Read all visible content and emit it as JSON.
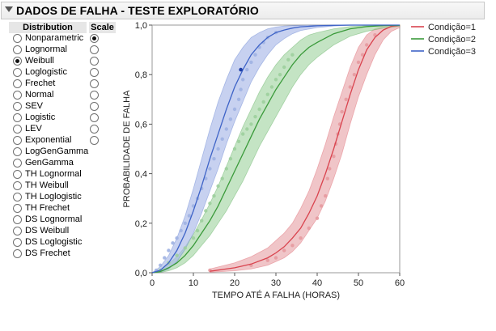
{
  "report": {
    "title": "DADOS DE FALHA - TESTE EXPLORATÓRIO"
  },
  "table": {
    "distribution_header": "Distribution",
    "scale_header": "Scale",
    "distributions": [
      {
        "label": "Nonparametric",
        "selected": false,
        "scale_selected": true,
        "has_scale": true
      },
      {
        "label": "Lognormal",
        "selected": false,
        "scale_selected": false,
        "has_scale": true
      },
      {
        "label": "Weibull",
        "selected": true,
        "scale_selected": false,
        "has_scale": true
      },
      {
        "label": "Loglogistic",
        "selected": false,
        "scale_selected": false,
        "has_scale": true
      },
      {
        "label": "Frechet",
        "selected": false,
        "scale_selected": false,
        "has_scale": true
      },
      {
        "label": "Normal",
        "selected": false,
        "scale_selected": false,
        "has_scale": true
      },
      {
        "label": "SEV",
        "selected": false,
        "scale_selected": false,
        "has_scale": true
      },
      {
        "label": "Logistic",
        "selected": false,
        "scale_selected": false,
        "has_scale": true
      },
      {
        "label": "LEV",
        "selected": false,
        "scale_selected": false,
        "has_scale": true
      },
      {
        "label": "Exponential",
        "selected": false,
        "scale_selected": false,
        "has_scale": true
      },
      {
        "label": "LogGenGamma",
        "selected": false,
        "scale_selected": false,
        "has_scale": false
      },
      {
        "label": "GenGamma",
        "selected": false,
        "scale_selected": false,
        "has_scale": false
      },
      {
        "label": "TH Lognormal",
        "selected": false,
        "scale_selected": false,
        "has_scale": false
      },
      {
        "label": "TH Weibull",
        "selected": false,
        "scale_selected": false,
        "has_scale": false
      },
      {
        "label": "TH Loglogistic",
        "selected": false,
        "scale_selected": false,
        "has_scale": false
      },
      {
        "label": "TH Frechet",
        "selected": false,
        "scale_selected": false,
        "has_scale": false
      },
      {
        "label": "DS Lognormal",
        "selected": false,
        "scale_selected": false,
        "has_scale": false
      },
      {
        "label": "DS Weibull",
        "selected": false,
        "scale_selected": false,
        "has_scale": false
      },
      {
        "label": "DS Loglogistic",
        "selected": false,
        "scale_selected": false,
        "has_scale": false
      },
      {
        "label": "DS Frechet",
        "selected": false,
        "scale_selected": false,
        "has_scale": false
      }
    ]
  },
  "chart_data": {
    "type": "line",
    "xlabel": "TEMPO ATÉ A FALHA (HORAS)",
    "ylabel": "PROBABILIDADE DE FALHA",
    "xlim": [
      0,
      60
    ],
    "ylim": [
      0,
      1
    ],
    "x_ticks": [
      "0",
      "10",
      "20",
      "30",
      "40",
      "50",
      "60"
    ],
    "y_ticks": [
      "0,0",
      "0,2",
      "0,4",
      "0,6",
      "0,8",
      "1,0"
    ],
    "grid": false,
    "legend_position": "right",
    "series": [
      {
        "name": "Condição=1",
        "color": "#d9434e",
        "fill": "#e8a6aa",
        "dots": "#e6999e",
        "x": [
          14,
          20,
          24,
          28,
          30,
          32,
          34,
          36,
          38,
          40,
          42,
          44,
          46,
          48,
          50,
          52,
          54,
          56,
          58,
          60
        ],
        "y": [
          0.006,
          0.02,
          0.035,
          0.06,
          0.08,
          0.105,
          0.14,
          0.18,
          0.24,
          0.31,
          0.4,
          0.5,
          0.61,
          0.72,
          0.82,
          0.9,
          0.95,
          0.98,
          0.995,
          0.999
        ],
        "upper": [
          0.015,
          0.04,
          0.065,
          0.1,
          0.13,
          0.16,
          0.2,
          0.26,
          0.33,
          0.42,
          0.52,
          0.63,
          0.73,
          0.83,
          0.91,
          0.96,
          0.985,
          0.996,
          0.999,
          1.0
        ],
        "lower": [
          0.002,
          0.008,
          0.015,
          0.03,
          0.045,
          0.06,
          0.085,
          0.12,
          0.17,
          0.22,
          0.29,
          0.38,
          0.48,
          0.6,
          0.71,
          0.8,
          0.88,
          0.94,
          0.975,
          0.99
        ],
        "points": [
          [
            14,
            0.01
          ],
          [
            24,
            0.03
          ],
          [
            28,
            0.05
          ],
          [
            30,
            0.06
          ],
          [
            32,
            0.09
          ],
          [
            34,
            0.11
          ],
          [
            36,
            0.14
          ],
          [
            38,
            0.18
          ],
          [
            40,
            0.22
          ],
          [
            41,
            0.27
          ],
          [
            42,
            0.31
          ],
          [
            42.5,
            0.38
          ],
          [
            43,
            0.42
          ],
          [
            44,
            0.47
          ],
          [
            44.5,
            0.52
          ],
          [
            45,
            0.56
          ],
          [
            45.5,
            0.6
          ],
          [
            46,
            0.65
          ],
          [
            47,
            0.7
          ],
          [
            48,
            0.75
          ],
          [
            49,
            0.8
          ],
          [
            50,
            0.85
          ],
          [
            51,
            0.88
          ],
          [
            52,
            0.92
          ],
          [
            54,
            0.96
          ]
        ]
      },
      {
        "name": "Condição=2",
        "color": "#3a9a3a",
        "fill": "#a5d6a5",
        "dots": "#9dcf9d",
        "x": [
          0,
          2,
          4,
          6,
          8,
          10,
          12,
          14,
          16,
          18,
          20,
          22,
          24,
          26,
          28,
          30,
          32,
          34,
          36,
          38,
          40,
          44,
          48,
          52,
          56,
          60
        ],
        "y": [
          0.0,
          0.005,
          0.02,
          0.04,
          0.07,
          0.11,
          0.16,
          0.21,
          0.27,
          0.34,
          0.41,
          0.48,
          0.55,
          0.62,
          0.68,
          0.74,
          0.79,
          0.84,
          0.88,
          0.91,
          0.93,
          0.965,
          0.985,
          0.994,
          0.998,
          0.999
        ],
        "upper": [
          0.0,
          0.012,
          0.035,
          0.065,
          0.105,
          0.155,
          0.215,
          0.28,
          0.35,
          0.43,
          0.51,
          0.59,
          0.66,
          0.73,
          0.79,
          0.84,
          0.88,
          0.91,
          0.94,
          0.96,
          0.97,
          0.985,
          0.994,
          0.998,
          0.999,
          1.0
        ],
        "lower": [
          0.0,
          0.001,
          0.008,
          0.02,
          0.04,
          0.07,
          0.11,
          0.15,
          0.2,
          0.25,
          0.31,
          0.37,
          0.44,
          0.51,
          0.57,
          0.63,
          0.69,
          0.75,
          0.8,
          0.84,
          0.87,
          0.92,
          0.955,
          0.975,
          0.988,
          0.995
        ],
        "points": [
          [
            2,
            0.01
          ],
          [
            4,
            0.04
          ],
          [
            6,
            0.07
          ],
          [
            8,
            0.1
          ],
          [
            10,
            0.14
          ],
          [
            11,
            0.17
          ],
          [
            12,
            0.21
          ],
          [
            13,
            0.25
          ],
          [
            14,
            0.28
          ],
          [
            15,
            0.31
          ],
          [
            16,
            0.35
          ],
          [
            17,
            0.38
          ],
          [
            18,
            0.42
          ],
          [
            19,
            0.46
          ],
          [
            20,
            0.5
          ],
          [
            21,
            0.53
          ],
          [
            22,
            0.56
          ],
          [
            23,
            0.58
          ],
          [
            24,
            0.6
          ],
          [
            25,
            0.63
          ],
          [
            26,
            0.66
          ],
          [
            27,
            0.69
          ],
          [
            28,
            0.72
          ],
          [
            29,
            0.75
          ],
          [
            30,
            0.78
          ],
          [
            31,
            0.8
          ],
          [
            32,
            0.83
          ],
          [
            33,
            0.86
          ],
          [
            34,
            0.88
          ]
        ]
      },
      {
        "name": "Condição=3",
        "color": "#3e63c7",
        "fill": "#a9b9e8",
        "dots": "#9fb1e2",
        "x": [
          0,
          2,
          4,
          6,
          8,
          10,
          12,
          14,
          16,
          18,
          20,
          22,
          24,
          26,
          28,
          30,
          32,
          34,
          36,
          40,
          44,
          48,
          52,
          56,
          60
        ],
        "y": [
          0.0,
          0.01,
          0.04,
          0.09,
          0.16,
          0.25,
          0.35,
          0.46,
          0.56,
          0.66,
          0.75,
          0.82,
          0.88,
          0.92,
          0.95,
          0.97,
          0.98,
          0.988,
          0.993,
          0.997,
          0.999,
          1.0,
          1.0,
          1.0,
          1.0
        ],
        "upper": [
          0.0,
          0.025,
          0.07,
          0.14,
          0.23,
          0.34,
          0.46,
          0.58,
          0.69,
          0.78,
          0.86,
          0.91,
          0.95,
          0.97,
          0.985,
          0.992,
          0.996,
          0.998,
          0.999,
          1.0,
          1.0,
          1.0,
          1.0,
          1.0,
          1.0
        ],
        "lower": [
          0.0,
          0.003,
          0.015,
          0.045,
          0.095,
          0.16,
          0.24,
          0.33,
          0.42,
          0.52,
          0.61,
          0.69,
          0.77,
          0.83,
          0.88,
          0.92,
          0.945,
          0.965,
          0.978,
          0.99,
          0.996,
          0.999,
          1.0,
          1.0,
          1.0
        ],
        "points": [
          [
            1,
            0.01
          ],
          [
            2,
            0.03
          ],
          [
            3,
            0.06
          ],
          [
            4,
            0.09
          ],
          [
            5,
            0.12
          ],
          [
            6,
            0.14
          ],
          [
            7,
            0.17
          ],
          [
            8,
            0.2
          ],
          [
            9,
            0.23
          ],
          [
            10,
            0.27
          ],
          [
            11,
            0.3
          ],
          [
            12,
            0.34
          ],
          [
            13,
            0.38
          ],
          [
            14,
            0.42
          ],
          [
            15,
            0.46
          ],
          [
            16,
            0.5
          ],
          [
            17,
            0.54
          ],
          [
            18,
            0.58
          ],
          [
            19,
            0.62
          ],
          [
            20,
            0.66
          ],
          [
            21,
            0.7
          ],
          [
            21.5,
            0.74
          ],
          [
            22,
            0.78
          ],
          [
            23,
            0.82
          ],
          [
            24,
            0.85
          ],
          [
            25,
            0.88
          ],
          [
            26,
            0.91
          ],
          [
            27,
            0.93
          ],
          [
            28,
            0.95
          ],
          [
            30,
            0.97
          ]
        ]
      }
    ]
  }
}
